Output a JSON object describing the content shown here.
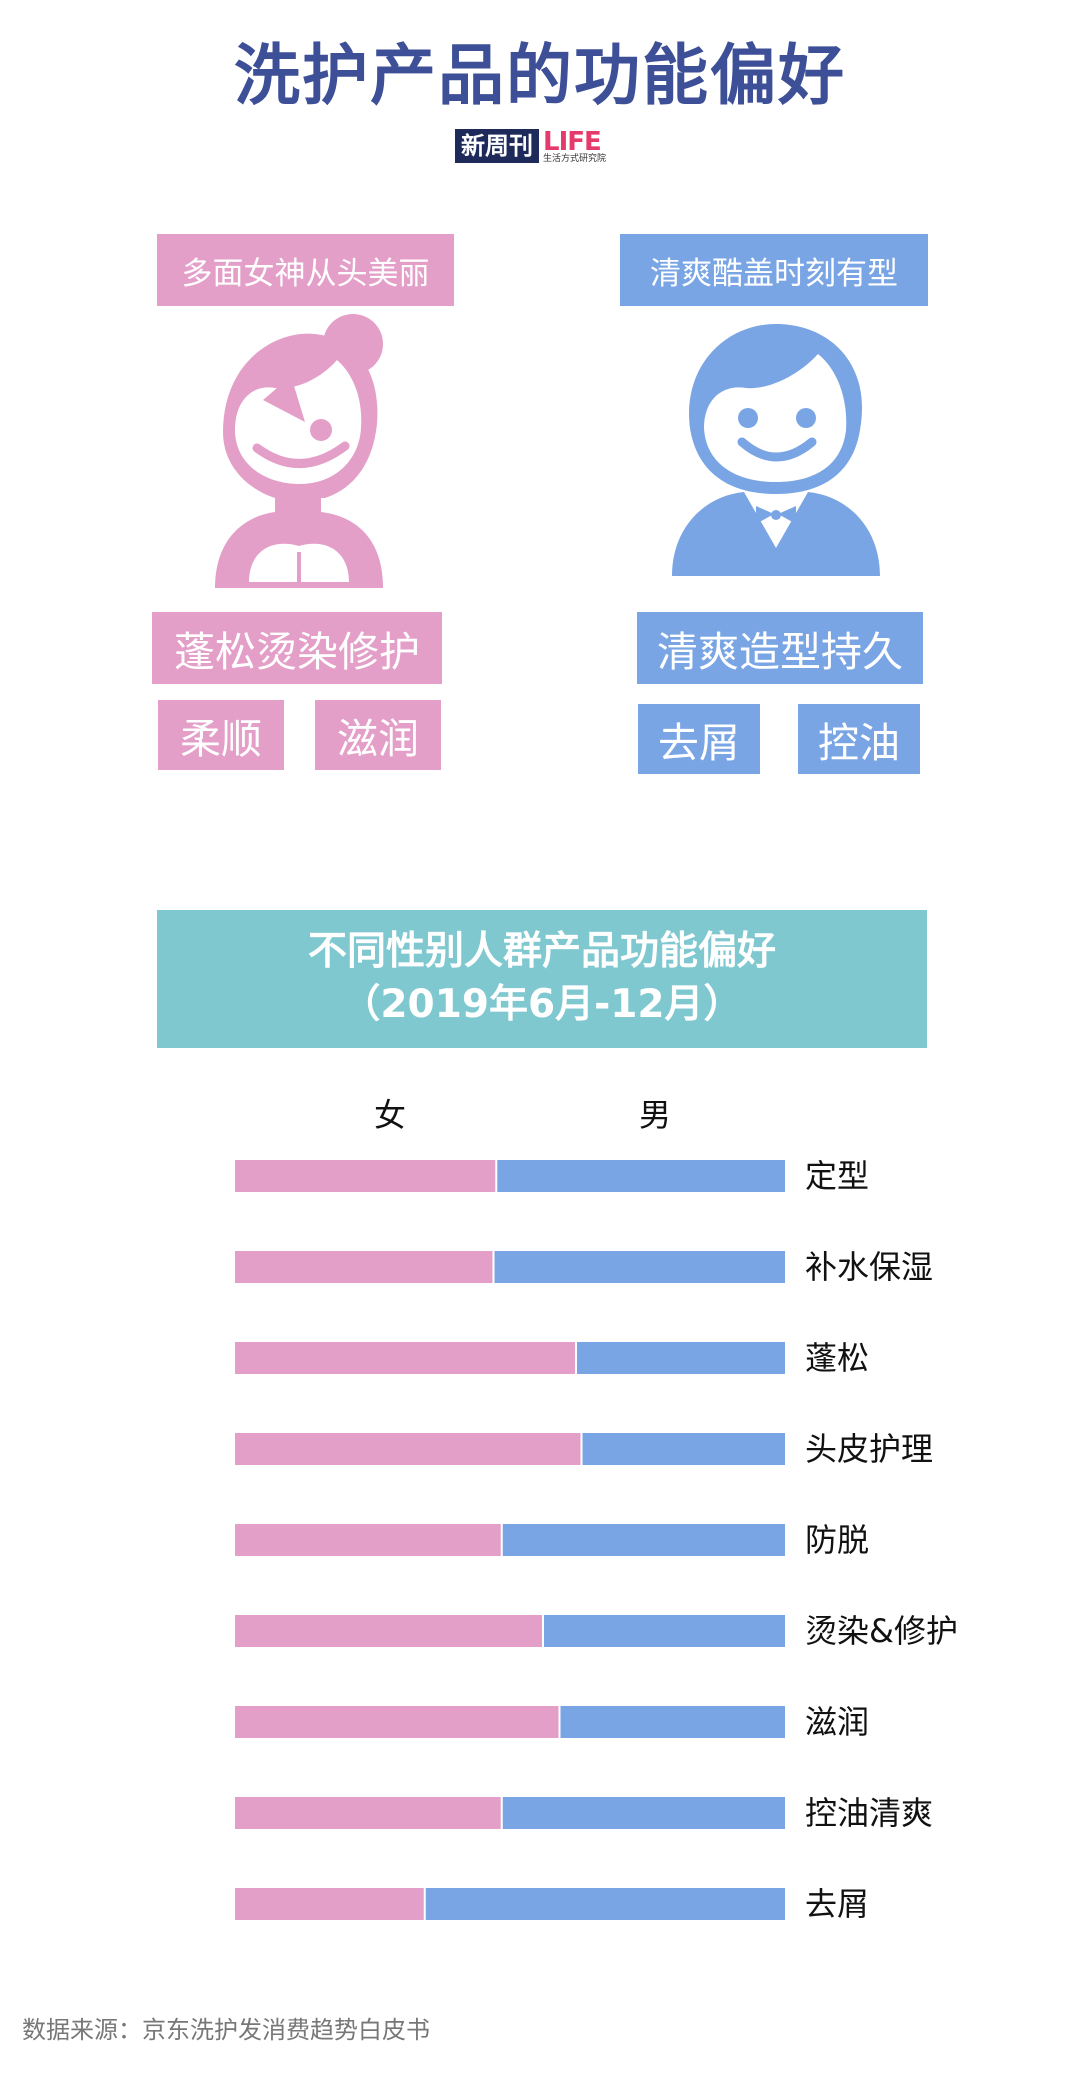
{
  "title": "洗护产品的功能偏好",
  "logo": {
    "main": "新周刊",
    "life": "LIFE",
    "sub": "生活方式研究院"
  },
  "female": {
    "slogan": "多面女神从头美丽",
    "main_tag": "蓬松烫染修护",
    "tags": [
      "柔顺",
      "滋润"
    ],
    "color": "#e49fc8"
  },
  "male": {
    "slogan": "清爽酷盖时刻有型",
    "main_tag": "清爽造型持久",
    "tags": [
      "去屑",
      "控油"
    ],
    "color": "#7aa5e5"
  },
  "banner": {
    "line1": "不同性别人群产品功能偏好",
    "line2": "（2019年6月-12月）"
  },
  "chart_data": {
    "type": "bar",
    "stacked": "100%",
    "orientation": "horizontal",
    "title": "不同性别人群产品功能偏好（2019年6月-12月）",
    "legend_position": "top",
    "categories": [
      "定型",
      "补水保湿",
      "蓬松",
      "头皮护理",
      "防脱",
      "烫染&修护",
      "滋润",
      "控油清爽",
      "去屑"
    ],
    "series": [
      {
        "name": "女",
        "color": "#e49fc8",
        "values": [
          47.5,
          47,
          62,
          63,
          48.5,
          56,
          59,
          48.5,
          34.5
        ]
      },
      {
        "name": "男",
        "color": "#7aa5e5",
        "values": [
          52.5,
          53,
          38,
          37,
          51.5,
          44,
          41,
          51.5,
          65.5
        ]
      }
    ],
    "xlim": [
      0,
      100
    ]
  },
  "source": "数据来源：京东洗护发消费趋势白皮书"
}
